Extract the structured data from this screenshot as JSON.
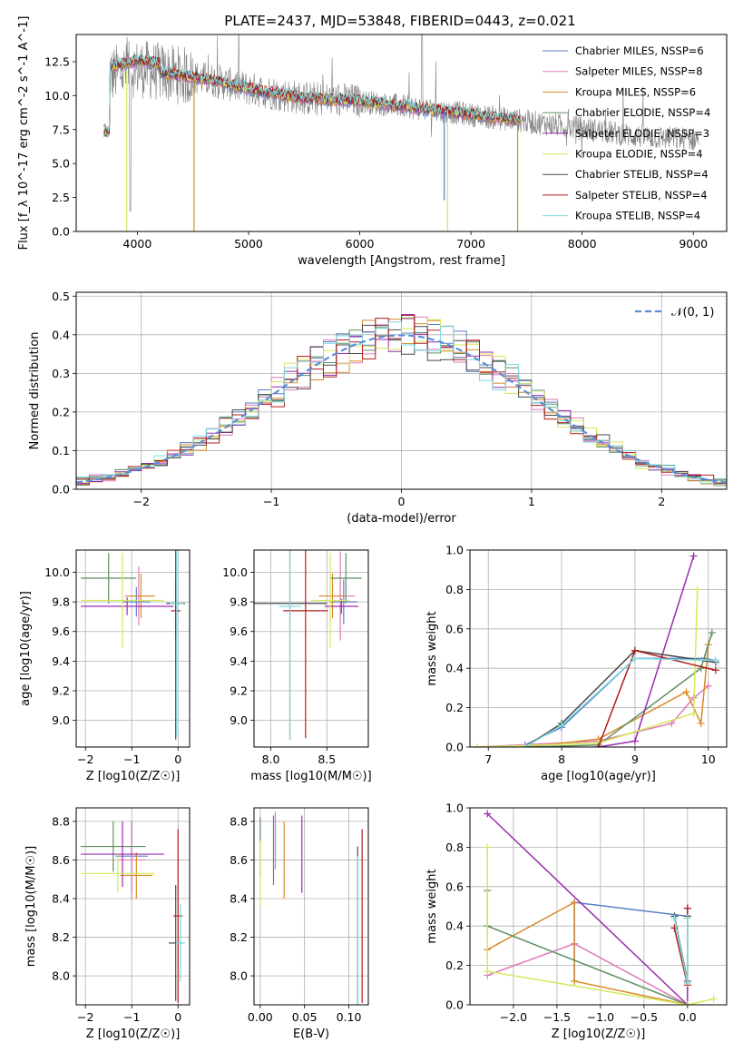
{
  "figure_title": "PLATE=2437, MJD=53848, FIBERID=0443, z=0.021",
  "series_colors": [
    "#5b7fc7",
    "#e07ab8",
    "#d98b2b",
    "#5d8f60",
    "#9a2bb0",
    "#d6e85a",
    "#4a4a4a",
    "#b31b1b",
    "#7fd9dd"
  ],
  "chart_data": [
    {
      "id": "spectrum",
      "type": "line",
      "xlabel": "wavelength [Angstrom, rest frame]",
      "ylabel": "Flux [f_λ 10^-17 erg cm^-2 s^-1 A^-1]",
      "xlim": [
        3450,
        9300
      ],
      "ylim": [
        0,
        14.5
      ],
      "xticks": [
        "4000",
        "5000",
        "6000",
        "7000",
        "8000",
        "9000"
      ],
      "yticks": [
        "0.0",
        "2.5",
        "5.0",
        "7.5",
        "10.0",
        "12.5"
      ],
      "legend": [
        "Chabrier MILES, NSSP=6",
        "Salpeter MILES, NSSP=8",
        "Kroupa MILES, NSSP=6",
        "Chabrier ELODIE, NSSP=4",
        "Salpeter ELODIE, NSSP=3",
        "Kroupa ELODIE, NSSP=4",
        "Chabrier STELIB, NSSP=4",
        "Salpeter STELIB, NSSP=4",
        "Kroupa STELIB, NSSP=4"
      ],
      "legend_position": "upper-right",
      "model_range": [
        3700,
        7450
      ],
      "data_range": [
        3740,
        9050
      ],
      "trend": [
        [
          3750,
          11.5
        ],
        [
          4000,
          12.0
        ],
        [
          4300,
          11.6
        ],
        [
          4700,
          11.1
        ],
        [
          5000,
          10.5
        ],
        [
          5500,
          9.8
        ],
        [
          6000,
          9.6
        ],
        [
          6500,
          9.1
        ],
        [
          7000,
          8.6
        ],
        [
          7500,
          8.1
        ],
        [
          8000,
          7.6
        ],
        [
          8500,
          7.0
        ],
        [
          9000,
          6.8
        ]
      ]
    },
    {
      "id": "residuals",
      "type": "line",
      "xlabel": "(data-model)/error",
      "ylabel": "Normed distribution",
      "xlim": [
        -2.5,
        2.5
      ],
      "ylim": [
        0,
        0.51
      ],
      "xticks": [
        "−2",
        "−1",
        "0",
        "1",
        "2"
      ],
      "yticks": [
        "0.0",
        "0.1",
        "0.2",
        "0.3",
        "0.4",
        "0.5"
      ],
      "legend": [
        "𝒩(0, 1)"
      ],
      "legend_position": "upper-right",
      "curve": "standard normal pdf",
      "bin_width": 0.1
    },
    {
      "id": "age_vs_Z",
      "type": "scatter",
      "xlabel": "Z [log10(Z/Z☉)]",
      "ylabel": "age [log10(age/yr)]",
      "xlim": [
        -2.2,
        0.25
      ],
      "ylim": [
        8.82,
        10.15
      ],
      "xticks": [
        "−2",
        "−1",
        "0"
      ],
      "yticks": [
        "9.0",
        "9.2",
        "9.4",
        "9.6",
        "9.8",
        "10.0"
      ],
      "points": [
        {
          "x": -0.9,
          "y": 9.8,
          "xerr": 0.3,
          "yerr": 0.1
        },
        {
          "x": -0.85,
          "y": 9.84,
          "xerr": 0.3,
          "yerr": 0.2
        },
        {
          "x": -0.8,
          "y": 9.84,
          "xerr": 0.3,
          "yerr": 0.15
        },
        {
          "x": -1.5,
          "y": 9.96,
          "xerr": 0.6,
          "yerr": 0.17
        },
        {
          "x": -1.1,
          "y": 9.77,
          "xerr": 1.0,
          "yerr": 0.06
        },
        {
          "x": -1.2,
          "y": 9.81,
          "xerr": 0.9,
          "yerr": 0.32
        },
        {
          "x": -0.05,
          "y": 9.79,
          "xerr": 0.2,
          "yerr": 0.92
        },
        {
          "x": -0.05,
          "y": 9.74,
          "xerr": 0.1,
          "yerr": 0.2
        },
        {
          "x": -0.03,
          "y": 9.79,
          "xerr": 0.15,
          "yerr": 0.9
        }
      ]
    },
    {
      "id": "age_vs_mass",
      "type": "scatter",
      "xlabel": "mass [log10(M/M☉)]",
      "ylabel": "",
      "xlim": [
        7.85,
        8.87
      ],
      "ylim": [
        8.82,
        10.15
      ],
      "xticks": [
        "8.0",
        "8.5"
      ],
      "yticks": [
        "9.0",
        "9.2",
        "9.4",
        "9.6",
        "9.8",
        "10.0"
      ],
      "points": [
        {
          "x": 8.65,
          "y": 9.8,
          "xerr": 0.12,
          "yerr": 0.15
        },
        {
          "x": 8.62,
          "y": 9.84,
          "xerr": 0.13,
          "yerr": 0.3
        },
        {
          "x": 8.55,
          "y": 9.84,
          "xerr": 0.12,
          "yerr": 0.15
        },
        {
          "x": 8.67,
          "y": 9.96,
          "xerr": 0.14,
          "yerr": 0.17
        },
        {
          "x": 8.63,
          "y": 9.77,
          "xerr": 0.15,
          "yerr": 0.05
        },
        {
          "x": 8.53,
          "y": 9.81,
          "xerr": 0.17,
          "yerr": 0.32
        },
        {
          "x": 8.17,
          "y": 9.79,
          "xerr": 0.33,
          "yerr": 0.92
        },
        {
          "x": 8.31,
          "y": 9.74,
          "xerr": 0.2,
          "yerr": 0.86
        },
        {
          "x": 8.17,
          "y": 9.77,
          "xerr": 0.1,
          "yerr": 0.9
        }
      ]
    },
    {
      "id": "weight_vs_age",
      "type": "line",
      "xlabel": "age [log10(age/yr)]",
      "ylabel": "mass weight",
      "xlim": [
        6.75,
        10.25
      ],
      "ylim": [
        0,
        1.0
      ],
      "xticks": [
        "7",
        "8",
        "9",
        "10"
      ],
      "yticks": [
        "0.0",
        "0.2",
        "0.4",
        "0.6",
        "0.8",
        "1.0"
      ],
      "series": [
        {
          "name": "Chabrier MILES",
          "x": [
            7.5,
            8.0,
            9.0,
            9.95,
            10.1
          ],
          "y": [
            0.01,
            0.1,
            0.45,
            0.45,
            0.44
          ]
        },
        {
          "name": "Salpeter MILES",
          "x": [
            6.85,
            8.5,
            9.5,
            9.8,
            10.0
          ],
          "y": [
            0.0,
            0.03,
            0.12,
            0.25,
            0.31
          ]
        },
        {
          "name": "Kroupa MILES",
          "x": [
            7.5,
            8.5,
            9.7,
            9.9,
            10.0
          ],
          "y": [
            0.0,
            0.04,
            0.28,
            0.12,
            0.52
          ]
        },
        {
          "name": "Chabrier ELODIE",
          "x": [
            7.5,
            8.5,
            9.9,
            10.05
          ],
          "y": [
            0.0,
            0.01,
            0.4,
            0.58
          ]
        },
        {
          "name": "Salpeter ELODIE",
          "x": [
            8.5,
            9.0,
            9.8
          ],
          "y": [
            0.0,
            0.03,
            0.97
          ]
        },
        {
          "name": "Kroupa ELODIE",
          "x": [
            6.85,
            8.5,
            9.8,
            9.85
          ],
          "y": [
            0.0,
            0.02,
            0.17,
            0.8
          ]
        },
        {
          "name": "Chabrier STELIB",
          "x": [
            7.5,
            8.0,
            9.0,
            10.1
          ],
          "y": [
            0.0,
            0.12,
            0.49,
            0.43
          ]
        },
        {
          "name": "Salpeter STELIB",
          "x": [
            8.5,
            9.0,
            10.1
          ],
          "y": [
            0.0,
            0.49,
            0.39
          ]
        },
        {
          "name": "Kroupa STELIB",
          "x": [
            7.5,
            8.0,
            9.0,
            10.1
          ],
          "y": [
            0.0,
            0.11,
            0.45,
            0.44
          ]
        }
      ]
    },
    {
      "id": "mass_vs_Z",
      "type": "scatter",
      "xlabel": "Z [log10(Z/Z☉)]",
      "ylabel": "mass [log10(M/M☉)]",
      "xlim": [
        -2.2,
        0.25
      ],
      "ylim": [
        7.85,
        8.87
      ],
      "xticks": [
        "−2",
        "−1",
        "0"
      ],
      "yticks": [
        "8.0",
        "8.2",
        "8.4",
        "8.6",
        "8.8"
      ],
      "points": [
        {
          "x": -1.0,
          "y": 8.62,
          "xerr": 0.35,
          "yerr": 0.18
        },
        {
          "x": -1.0,
          "y": 8.6,
          "xerr": 0.3,
          "yerr": 0.2
        },
        {
          "x": -0.9,
          "y": 8.52,
          "xerr": 0.35,
          "yerr": 0.12
        },
        {
          "x": -1.4,
          "y": 8.67,
          "xerr": 0.7,
          "yerr": 0.13
        },
        {
          "x": -1.2,
          "y": 8.63,
          "xerr": 0.9,
          "yerr": 0.17
        },
        {
          "x": -1.3,
          "y": 8.53,
          "xerr": 0.8,
          "yerr": 0.1
        },
        {
          "x": -0.05,
          "y": 8.17,
          "xerr": 0.15,
          "yerr": 0.3
        },
        {
          "x": 0.0,
          "y": 8.31,
          "xerr": 0.1,
          "yerr": 0.45
        },
        {
          "x": 0.05,
          "y": 8.17,
          "xerr": 0.1,
          "yerr": 0.2
        }
      ]
    },
    {
      "id": "mass_vs_ebv",
      "type": "scatter",
      "xlabel": "E(B-V)",
      "ylabel": "",
      "xlim": [
        -0.007,
        0.122
      ],
      "ylim": [
        7.85,
        8.87
      ],
      "xticks": [
        "0.00",
        "0.05",
        "0.10"
      ],
      "yticks": [
        "8.0",
        "8.2",
        "8.4",
        "8.6",
        "8.8"
      ],
      "points": [
        {
          "x": 0.015,
          "y": 8.65,
          "yerr": 0.18
        },
        {
          "x": 0.017,
          "y": 8.7,
          "yerr": 0.15
        },
        {
          "x": 0.027,
          "y": 8.6,
          "yerr": 0.2
        },
        {
          "x": 0.0,
          "y": 8.67,
          "yerr": 0.15
        },
        {
          "x": 0.047,
          "y": 8.63,
          "yerr": 0.2
        },
        {
          "x": 0.0,
          "y": 8.53,
          "yerr": 0.17
        },
        {
          "x": 0.11,
          "y": 8.17,
          "yerr": 0.5
        },
        {
          "x": 0.115,
          "y": 8.31,
          "yerr": 0.45
        },
        {
          "x": 0.11,
          "y": 8.17,
          "yerr": 0.45
        }
      ]
    },
    {
      "id": "weight_vs_Z",
      "type": "line",
      "xlabel": "Z [log10(Z/Z☉)]",
      "ylabel": "mass weight",
      "xlim": [
        -2.5,
        0.45
      ],
      "ylim": [
        0,
        1.0
      ],
      "xticks": [
        "−2.0",
        "−1.5",
        "−1.0",
        "−0.5",
        "0.0"
      ],
      "yticks": [
        "0.0",
        "0.2",
        "0.4",
        "0.6",
        "0.8",
        "1.0"
      ],
      "series": [
        {
          "name": "Chabrier MILES",
          "x": [
            -1.3,
            -1.3,
            0.0
          ],
          "y": [
            0.12,
            0.52,
            0.45
          ]
        },
        {
          "name": "Salpeter MILES",
          "x": [
            -2.3,
            -1.3,
            0.0
          ],
          "y": [
            0.15,
            0.31,
            0.0
          ]
        },
        {
          "name": "Kroupa MILES",
          "x": [
            -2.3,
            -1.3,
            -1.3,
            0.0
          ],
          "y": [
            0.28,
            0.52,
            0.12,
            0.0
          ]
        },
        {
          "name": "Chabrier ELODIE",
          "x": [
            -2.3,
            -2.3,
            0.0
          ],
          "y": [
            0.58,
            0.4,
            0.0
          ]
        },
        {
          "name": "Salpeter ELODIE",
          "x": [
            -2.3,
            0.0,
            0.0
          ],
          "y": [
            0.97,
            0.0,
            0.49
          ]
        },
        {
          "name": "Kroupa ELODIE",
          "x": [
            -2.3,
            -2.3,
            0.0,
            0.3
          ],
          "y": [
            0.8,
            0.17,
            0.0,
            0.03
          ]
        },
        {
          "name": "Chabrier STELIB",
          "x": [
            -0.15,
            0.0,
            0.0
          ],
          "y": [
            0.45,
            0.12,
            0.45
          ]
        },
        {
          "name": "Salpeter STELIB",
          "x": [
            -0.15,
            0.0,
            0.0
          ],
          "y": [
            0.39,
            0.1,
            0.49
          ]
        },
        {
          "name": "Kroupa STELIB",
          "x": [
            -0.15,
            0.0,
            0.0
          ],
          "y": [
            0.44,
            0.11,
            0.44
          ]
        }
      ]
    }
  ]
}
